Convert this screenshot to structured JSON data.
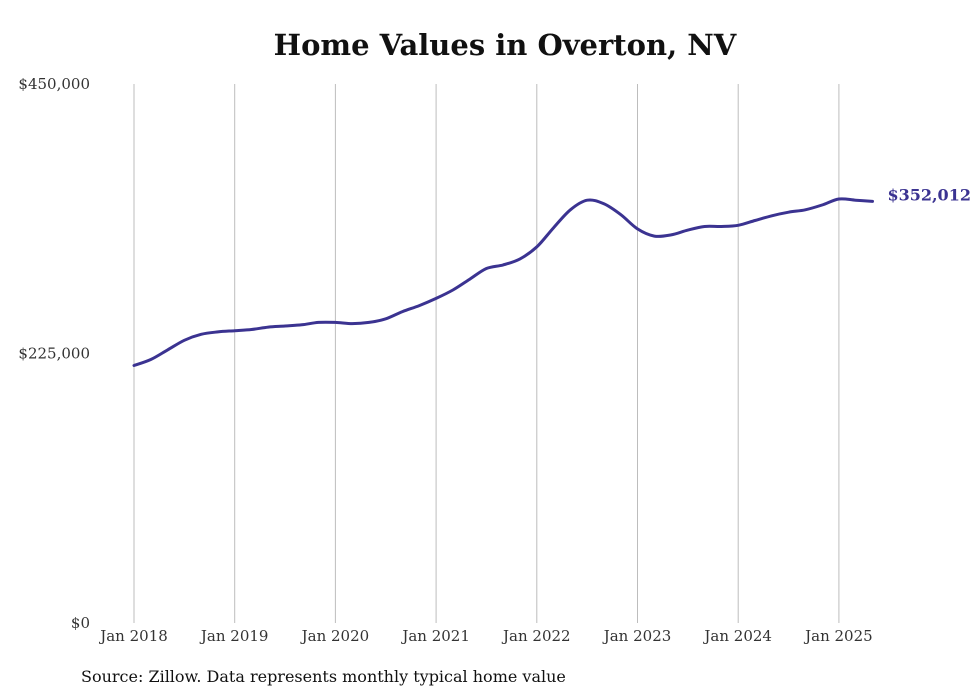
{
  "chart_data": {
    "type": "line",
    "title": "Home Values in Overton, NV",
    "xlabel": "",
    "ylabel": "",
    "ylim": [
      0,
      450000
    ],
    "yticks": [
      0,
      225000,
      450000
    ],
    "ytick_labels": [
      "$0",
      "$225,000",
      "$450,000"
    ],
    "xticks": [
      "2018-01",
      "2019-01",
      "2020-01",
      "2021-01",
      "2022-01",
      "2023-01",
      "2024-01",
      "2025-01"
    ],
    "xtick_labels": [
      "Jan 2018",
      "Jan 2019",
      "Jan 2020",
      "Jan 2021",
      "Jan 2022",
      "Jan 2023",
      "Jan 2024",
      "Jan 2025"
    ],
    "grid": "vertical",
    "line_color": "#3b3391",
    "end_label": "$352,012",
    "series": [
      {
        "x": [
          "2018-01",
          "2018-03",
          "2018-05",
          "2018-07",
          "2018-09",
          "2018-11",
          "2019-01",
          "2019-03",
          "2019-05",
          "2019-07",
          "2019-09",
          "2019-11",
          "2020-01",
          "2020-03",
          "2020-05",
          "2020-07",
          "2020-09",
          "2020-11",
          "2021-01",
          "2021-03",
          "2021-05",
          "2021-07",
          "2021-09",
          "2021-11",
          "2022-01",
          "2022-03",
          "2022-05",
          "2022-07",
          "2022-09",
          "2022-11",
          "2023-01",
          "2023-03",
          "2023-05",
          "2023-07",
          "2023-09",
          "2023-11",
          "2024-01",
          "2024-03",
          "2024-05",
          "2024-07",
          "2024-09",
          "2024-11",
          "2025-01",
          "2025-03",
          "2025-05"
        ],
        "values": [
          215000,
          220000,
          228000,
          236000,
          241000,
          243000,
          244000,
          245000,
          247000,
          248000,
          249000,
          251000,
          251000,
          250000,
          251000,
          254000,
          260000,
          265000,
          271000,
          278000,
          287000,
          296000,
          299000,
          304000,
          314000,
          330000,
          345000,
          353000,
          350000,
          341000,
          329000,
          323000,
          324000,
          328000,
          331000,
          331000,
          332000,
          336000,
          340000,
          343000,
          345000,
          349000,
          354000,
          353000,
          352012
        ]
      }
    ]
  },
  "source": "Source: Zillow. Data represents monthly typical home value"
}
